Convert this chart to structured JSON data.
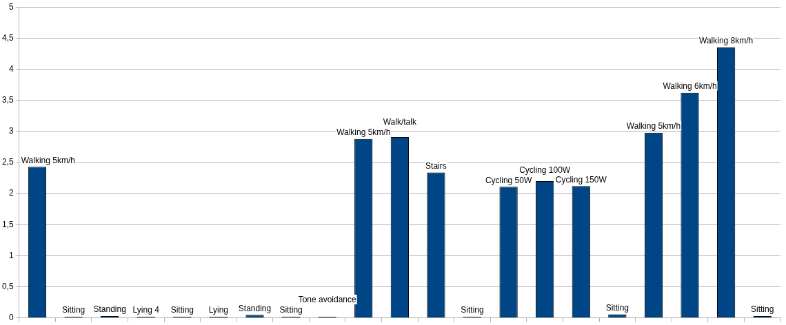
{
  "chart_data": {
    "type": "bar",
    "categories": [
      "Walking 5km/h",
      "Sitting",
      "Standing",
      "Lying 4",
      "Sitting",
      "Lying",
      "Standing",
      "Sitting",
      "Tone avoidance",
      "Walking 5km/h",
      "Walk/talk",
      "Stairs",
      "Sitting",
      "Cycling 50W",
      "Cycling 100W",
      "Cycling 150W",
      "Sitting",
      "Walking 5km/h",
      "Walking 6km/h",
      "Walking 8km/h",
      "Sitting"
    ],
    "values": [
      2.43,
      0.02,
      0.03,
      0.02,
      0.02,
      0.02,
      0.05,
      0.02,
      0.02,
      2.88,
      2.91,
      2.34,
      0.02,
      2.11,
      2.2,
      2.12,
      0.06,
      2.98,
      3.62,
      4.35,
      0.03
    ],
    "color": "#004586",
    "ylim": [
      0,
      5
    ],
    "yticks": [
      0,
      {
        "value": 0.5,
        "label": "0,5"
      },
      1,
      {
        "value": 1.5,
        "label": "1,5"
      },
      2,
      {
        "value": 2.5,
        "label": "2,5"
      },
      3,
      {
        "value": 3.5,
        "label": "3,5"
      },
      4,
      {
        "value": 4.5,
        "label": "4,5"
      },
      5
    ],
    "grid": "y",
    "legend": false,
    "tick_labels": "y"
  }
}
